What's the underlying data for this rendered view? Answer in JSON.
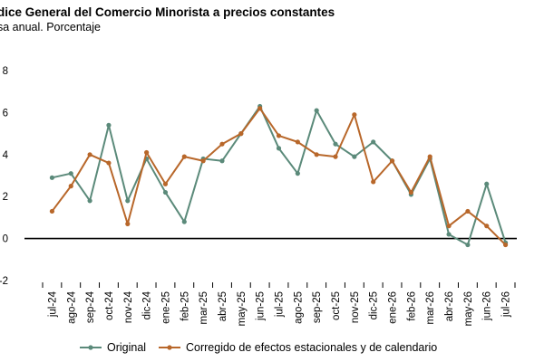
{
  "chart_data": {
    "type": "line",
    "title": "dice General del Comercio Minorista a precios constantes",
    "subtitle": "sa anual. Porcentaje",
    "categories": [
      "jul-24",
      "ago-24",
      "sep-24",
      "oct-24",
      "nov-24",
      "dic-24",
      "ene-25",
      "feb-25",
      "mar-25",
      "abr-25",
      "may-25",
      "jun-25",
      "jul-25",
      "ago-25",
      "sep-25",
      "oct-25",
      "nov-25",
      "dic-25",
      "ene-26",
      "feb-26",
      "mar-26",
      "abr-26",
      "may-26",
      "jun-26",
      "jul-26"
    ],
    "ylim": [
      -2,
      8
    ],
    "yticks": [
      "-2",
      "0",
      "2",
      "4",
      "6",
      "8"
    ],
    "grid": false,
    "legend_position": "bottom",
    "series": [
      {
        "name": "Original",
        "color": "#5b8a7a",
        "values": [
          2.9,
          3.1,
          1.8,
          5.4,
          1.8,
          3.8,
          2.2,
          0.8,
          3.8,
          3.7,
          5.0,
          6.3,
          4.3,
          3.1,
          6.1,
          4.5,
          3.9,
          4.6,
          3.7,
          2.1,
          3.8,
          0.2,
          -0.3,
          2.6,
          -0.2
        ]
      },
      {
        "name": "Corregido de efectos estacionales y de calendario",
        "color": "#b8672a",
        "values": [
          1.3,
          2.5,
          4.0,
          3.6,
          0.7,
          4.1,
          2.6,
          3.9,
          3.7,
          4.5,
          5.0,
          6.2,
          4.9,
          4.6,
          4.0,
          3.9,
          5.9,
          2.7,
          3.7,
          2.2,
          3.9,
          0.6,
          1.3,
          0.6,
          -0.3
        ]
      }
    ]
  }
}
